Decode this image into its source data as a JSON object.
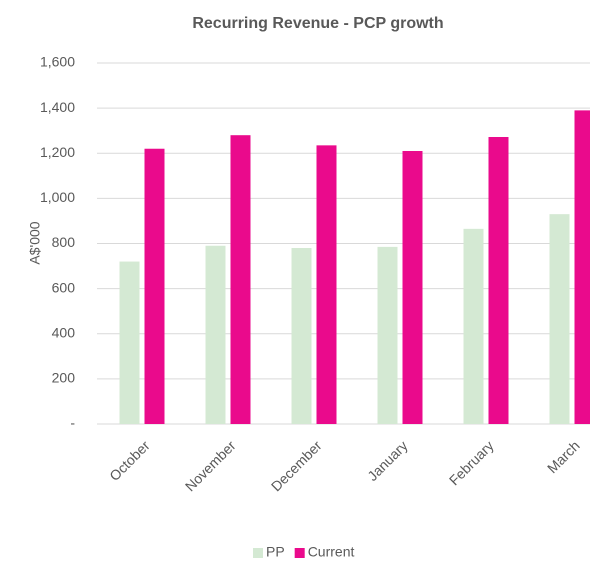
{
  "chart_data": {
    "type": "bar",
    "title": "Recurring Revenue - PCP growth",
    "y_label": "A$'000",
    "categories": [
      "October",
      "November",
      "December",
      "January",
      "February",
      "March"
    ],
    "series": [
      {
        "name": "PP",
        "color": "#d4e9d3",
        "values": [
          720,
          790,
          780,
          785,
          865,
          930
        ]
      },
      {
        "name": "Current",
        "color": "#ea0a8c",
        "values": [
          1220,
          1280,
          1235,
          1210,
          1272,
          1390
        ]
      }
    ],
    "ylim": [
      0,
      1600
    ],
    "yticks": [
      {
        "value": 0,
        "label": "-"
      },
      200,
      400,
      600,
      800,
      {
        "value": 1000,
        "label": "1,000"
      },
      {
        "value": 1200,
        "label": "1,200"
      },
      {
        "value": 1400,
        "label": "1,400"
      },
      {
        "value": 1600,
        "label": "1,600"
      }
    ],
    "grid": true,
    "legend": "bottom"
  }
}
